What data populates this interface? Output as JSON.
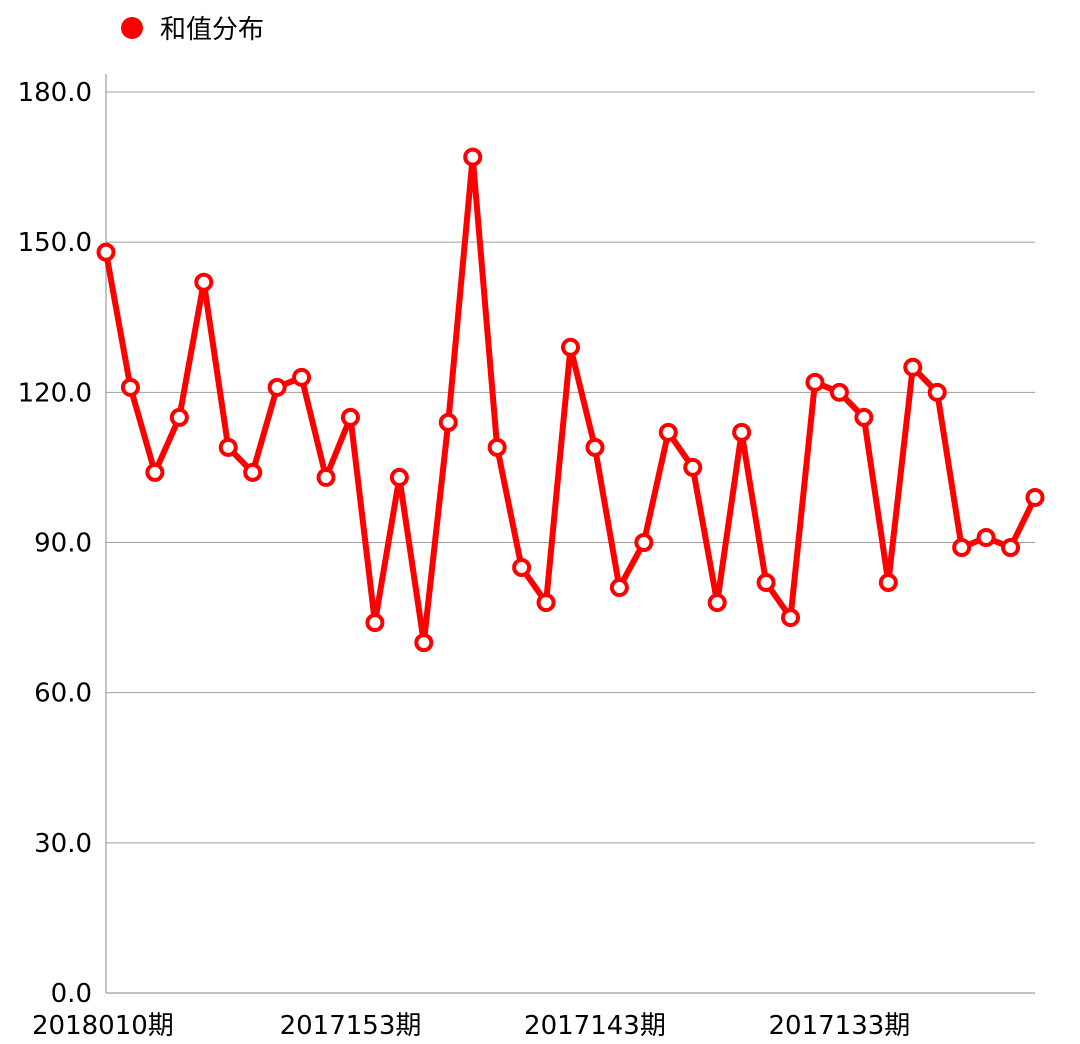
{
  "colors": {
    "series": "#ff0000",
    "grid": "#9e9e9e",
    "axis": "#9e9e9e",
    "text": "#000000",
    "point_fill": "#ffffff"
  },
  "chart_data": {
    "type": "line",
    "xlabel": "",
    "ylabel": "",
    "ylim": [
      0,
      180
    ],
    "yticks": [
      "0.0",
      "30.0",
      "60.0",
      "90.0",
      "120.0",
      "150.0",
      "180.0"
    ],
    "xticks": [
      {
        "index": 0,
        "label": "2018010期"
      },
      {
        "index": 10,
        "label": "2017153期"
      },
      {
        "index": 20,
        "label": "2017143期"
      },
      {
        "index": 30,
        "label": "2017133期"
      }
    ],
    "grid": true,
    "legend": "top-left",
    "series": [
      {
        "name": "和值分布",
        "values": [
          148,
          121,
          104,
          115,
          142,
          109,
          104,
          121,
          123,
          103,
          115,
          74,
          103,
          70,
          114,
          167,
          109,
          85,
          78,
          129,
          109,
          81,
          90,
          112,
          105,
          78,
          112,
          82,
          75,
          122,
          120,
          115,
          82,
          125,
          120,
          89,
          91,
          89,
          99
        ]
      }
    ]
  }
}
